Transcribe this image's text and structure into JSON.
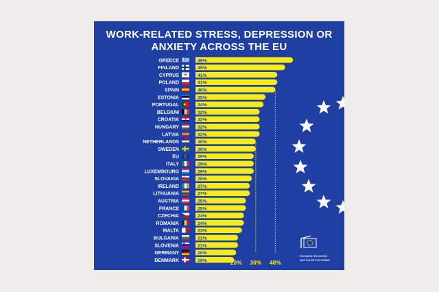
{
  "colors": {
    "background": "#eeede9",
    "panel": "#1f3fa3",
    "bar": "#f7ec1a",
    "text": "#ffffff",
    "value_text": "#1f3fa3",
    "star": "#ffffff"
  },
  "title_line1": "WORK-RELATED STRESS, DEPRESSION OR",
  "title_line2": "ANXIETY ACROSS THE EU",
  "logo": {
    "icon": "eesc-eu-flag-icon",
    "line1": "European Economic",
    "line2": "and Social Committee"
  },
  "decoration": {
    "stars": "eu-stars-icon"
  },
  "chart_data": {
    "type": "bar",
    "orientation": "horizontal",
    "title": "WORK-RELATED STRESS, DEPRESSION OR ANXIETY ACROSS THE EU",
    "xlabel": "",
    "ylabel": "",
    "grid": "dotted reference lines at 20%, 30%, 40%",
    "xlim": [
      0,
      50
    ],
    "reference_ticks": [
      {
        "value": 20,
        "label": "20%"
      },
      {
        "value": 30,
        "label": "30%"
      },
      {
        "value": 40,
        "label": "40%"
      }
    ],
    "categories": [
      {
        "name": "GREECE",
        "value": 49,
        "label": "49%",
        "flag": "greece-flag-icon"
      },
      {
        "name": "FINLAND",
        "value": 45,
        "label": "45%",
        "flag": "finland-flag-icon"
      },
      {
        "name": "CYPRUS",
        "value": 41,
        "label": "41%",
        "flag": "cyprus-flag-icon"
      },
      {
        "name": "POLAND",
        "value": 41,
        "label": "41%",
        "flag": "poland-flag-icon"
      },
      {
        "name": "SPAIN",
        "value": 40,
        "label": "40%",
        "flag": "spain-flag-icon"
      },
      {
        "name": "ESTONIA",
        "value": 35,
        "label": "35%",
        "flag": "estonia-flag-icon"
      },
      {
        "name": "PORTUGAL",
        "value": 34,
        "label": "34%",
        "flag": "portugal-flag-icon"
      },
      {
        "name": "BELGIUM",
        "value": 32,
        "label": "32%",
        "flag": "belgium-flag-icon"
      },
      {
        "name": "CROATIA",
        "value": 32,
        "label": "32%",
        "flag": "croatia-flag-icon"
      },
      {
        "name": "HUNGARY",
        "value": 32,
        "label": "32%",
        "flag": "hungary-flag-icon"
      },
      {
        "name": "LATVIA",
        "value": 32,
        "label": "32%",
        "flag": "latvia-flag-icon"
      },
      {
        "name": "NETHERLANDS",
        "value": 30,
        "label": "30%",
        "flag": "netherlands-flag-icon"
      },
      {
        "name": "SWEDEN",
        "value": 30,
        "label": "30%",
        "flag": "sweden-flag-icon"
      },
      {
        "name": "EU",
        "value": 29,
        "label": "29%",
        "flag": "eu-flag-icon"
      },
      {
        "name": "ITALY",
        "value": 29,
        "label": "29%",
        "flag": "italy-flag-icon"
      },
      {
        "name": "LUXEMBOURG",
        "value": 29,
        "label": "29%",
        "flag": "luxembourg-flag-icon"
      },
      {
        "name": "SLOVAKIA",
        "value": 28,
        "label": "28%",
        "flag": "slovakia-flag-icon"
      },
      {
        "name": "IRELAND",
        "value": 27,
        "label": "27%",
        "flag": "ireland-flag-icon"
      },
      {
        "name": "LITHUANIA",
        "value": 27,
        "label": "27%",
        "flag": "lithuania-flag-icon"
      },
      {
        "name": "AUSTRIA",
        "value": 25,
        "label": "25%",
        "flag": "austria-flag-icon"
      },
      {
        "name": "FRANCE",
        "value": 25,
        "label": "25%",
        "flag": "france-flag-icon"
      },
      {
        "name": "CZECHIA",
        "value": 24,
        "label": "24%",
        "flag": "czechia-flag-icon"
      },
      {
        "name": "ROMANIA",
        "value": 24,
        "label": "24%",
        "flag": "romania-flag-icon"
      },
      {
        "name": "MALTA",
        "value": 23,
        "label": "23%",
        "flag": "malta-flag-icon"
      },
      {
        "name": "BULGARIA",
        "value": 21,
        "label": "21%",
        "flag": "bulgaria-flag-icon"
      },
      {
        "name": "SLOVENIA",
        "value": 21,
        "label": "21%",
        "flag": "slovenia-flag-icon"
      },
      {
        "name": "GERMANY",
        "value": 20,
        "label": "20%",
        "flag": "germany-flag-icon"
      },
      {
        "name": "DENMARK",
        "value": 19,
        "label": "19%",
        "flag": "denmark-flag-icon"
      }
    ]
  }
}
